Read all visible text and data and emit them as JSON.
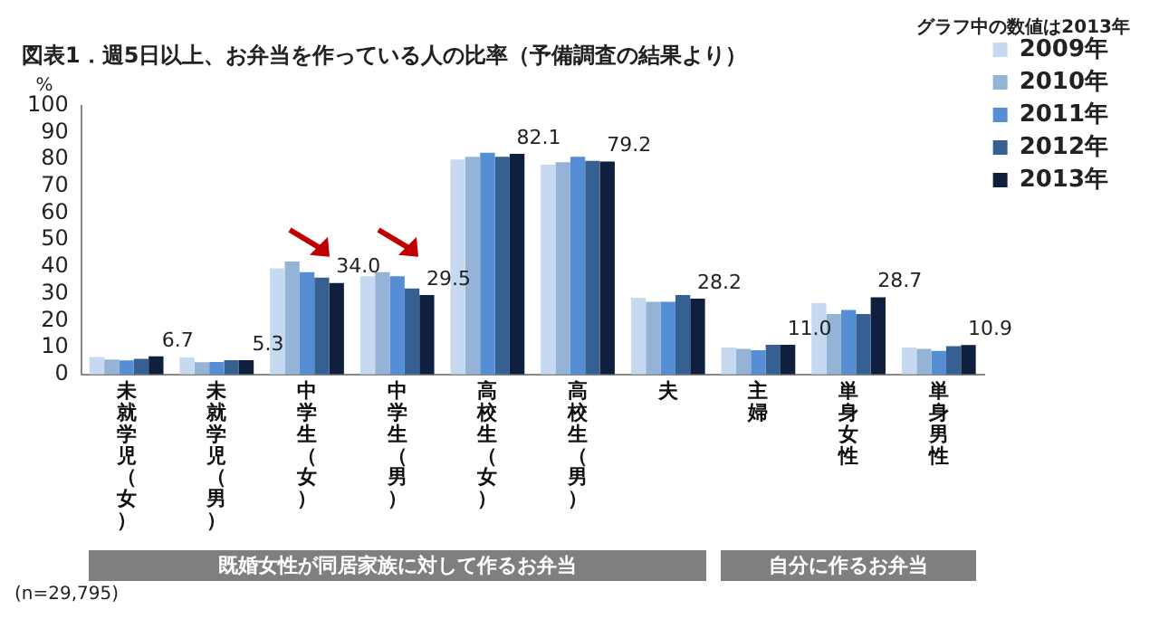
{
  "chart_data": {
    "type": "bar",
    "title": "図表1．週5日以上、お弁当を作っている人の比率（予備調査の結果より）",
    "ylabel": "%",
    "categories": [
      "未就学児（女）",
      "未就学児（男）",
      "中学生（女）",
      "中学生（男）",
      "高校生（女）",
      "高校生（男）",
      "夫",
      "主婦",
      "単身女性",
      "単身男性"
    ],
    "series": [
      {
        "name": "2009年",
        "color": "#c6d9f1",
        "values": [
          6.5,
          6.3,
          39.5,
          36.5,
          80,
          78,
          28.5,
          10,
          26.5,
          10
        ]
      },
      {
        "name": "2010年",
        "color": "#95b3d7",
        "values": [
          5.5,
          4.5,
          42,
          38,
          81,
          79,
          27,
          9.5,
          22.5,
          9.5
        ]
      },
      {
        "name": "2011年",
        "color": "#558ed5",
        "values": [
          5.2,
          4.6,
          38,
          36.5,
          82.5,
          81,
          27,
          9,
          24,
          8.7
        ]
      },
      {
        "name": "2012年",
        "color": "#376092",
        "values": [
          5.8,
          5.3,
          36,
          32,
          81,
          79.5,
          29.5,
          11,
          22.5,
          10.5
        ]
      },
      {
        "name": "2013年",
        "color": "#0f1f3d",
        "values": [
          6.7,
          5.3,
          34.0,
          29.5,
          82.1,
          79.2,
          28.2,
          11.0,
          28.7,
          10.9
        ],
        "value_labels": [
          "6.7",
          "5.3",
          "34.0",
          "29.5",
          "82.1",
          "79.2",
          "28.2",
          "11.0",
          "28.7",
          "10.9"
        ]
      }
    ],
    "ylim": [
      0,
      100
    ],
    "yticks": [
      0,
      10,
      20,
      30,
      40,
      50,
      60,
      70,
      80,
      90,
      100
    ],
    "grid": false,
    "legend": "right",
    "annotations": [
      "グラフ中の数値は2013年",
      "(n=29,795)",
      "既婚女性が同居家族に対して作るお弁当",
      "自分に作るお弁当"
    ]
  }
}
